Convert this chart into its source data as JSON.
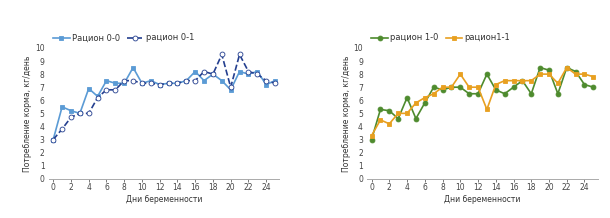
{
  "left": {
    "xlabel": "Дни беременности",
    "ylabel": "Потребление корма, кг/день",
    "series": {
      "r00": {
        "label": "Рацион 0-0",
        "color": "#5b9bd5",
        "linestyle": "-",
        "marker": "s",
        "markersize": 3.5,
        "linewidth": 1.2,
        "x": [
          0,
          1,
          2,
          3,
          4,
          5,
          6,
          7,
          8,
          9,
          10,
          11,
          12,
          13,
          14,
          15,
          16,
          17,
          18,
          19,
          20,
          21,
          22,
          23,
          24,
          25
        ],
        "y": [
          3.0,
          5.5,
          5.2,
          5.0,
          6.9,
          6.3,
          7.5,
          7.3,
          7.3,
          8.5,
          7.3,
          7.5,
          7.2,
          7.3,
          7.3,
          7.5,
          8.2,
          7.5,
          8.0,
          7.5,
          6.8,
          8.2,
          8.0,
          8.2,
          7.2,
          7.5
        ]
      },
      "r01": {
        "label": "рацион 0-1",
        "color": "#243f8f",
        "linestyle": "--",
        "marker": "o",
        "markerfacecolor": "white",
        "markersize": 3.5,
        "linewidth": 1.2,
        "x": [
          0,
          1,
          2,
          3,
          4,
          5,
          6,
          7,
          8,
          9,
          10,
          11,
          12,
          13,
          14,
          15,
          16,
          17,
          18,
          19,
          20,
          21,
          22,
          23,
          24,
          25
        ],
        "y": [
          3.0,
          3.8,
          4.7,
          5.0,
          5.0,
          6.2,
          6.8,
          6.8,
          7.5,
          7.5,
          7.3,
          7.3,
          7.2,
          7.3,
          7.3,
          7.5,
          7.5,
          8.2,
          8.0,
          9.5,
          7.0,
          9.5,
          8.2,
          8.0,
          7.5,
          7.3
        ]
      }
    },
    "xlim": [
      -0.5,
      25.5
    ],
    "ylim": [
      0,
      10
    ],
    "xticks": [
      0,
      2,
      4,
      6,
      8,
      10,
      12,
      14,
      16,
      18,
      20,
      22,
      24
    ],
    "yticks": [
      0,
      1,
      2,
      3,
      4,
      5,
      6,
      7,
      8,
      9,
      10
    ]
  },
  "right": {
    "xlabel": "Дни беременности",
    "ylabel": "Потребление корма, кг/день",
    "series": {
      "r10": {
        "label": "рацион 1-0",
        "color": "#4e8b2e",
        "linestyle": "-",
        "marker": "o",
        "markersize": 3.5,
        "linewidth": 1.2,
        "x": [
          0,
          1,
          2,
          3,
          4,
          5,
          6,
          7,
          8,
          9,
          10,
          11,
          12,
          13,
          14,
          15,
          16,
          17,
          18,
          19,
          20,
          21,
          22,
          23,
          24,
          25
        ],
        "y": [
          3.0,
          5.3,
          5.2,
          4.6,
          6.2,
          4.6,
          5.8,
          7.0,
          6.8,
          7.0,
          7.0,
          6.5,
          6.5,
          8.0,
          6.8,
          6.5,
          7.0,
          7.5,
          6.5,
          8.5,
          8.3,
          6.5,
          8.5,
          8.2,
          7.2,
          7.0
        ]
      },
      "r11": {
        "label": "рацион1-1",
        "color": "#e8a020",
        "linestyle": "-",
        "marker": "s",
        "markersize": 3.5,
        "linewidth": 1.2,
        "x": [
          0,
          1,
          2,
          3,
          4,
          5,
          6,
          7,
          8,
          9,
          10,
          11,
          12,
          13,
          14,
          15,
          16,
          17,
          18,
          19,
          20,
          21,
          22,
          23,
          24,
          25
        ],
        "y": [
          3.3,
          4.5,
          4.2,
          5.0,
          5.0,
          5.8,
          6.2,
          6.5,
          7.0,
          7.0,
          8.0,
          7.0,
          7.0,
          5.3,
          7.2,
          7.5,
          7.5,
          7.5,
          7.5,
          8.0,
          8.0,
          7.3,
          8.5,
          8.0,
          8.0,
          7.8
        ]
      }
    },
    "xlim": [
      -0.5,
      25.5
    ],
    "ylim": [
      0,
      10
    ],
    "xticks": [
      0,
      2,
      4,
      6,
      8,
      10,
      12,
      14,
      16,
      18,
      20,
      22,
      24
    ],
    "yticks": [
      0,
      1,
      2,
      3,
      4,
      5,
      6,
      7,
      8,
      9,
      10
    ]
  },
  "bg_color": "#ffffff",
  "spine_color": "#aaaaaa",
  "tick_fontsize": 5.5,
  "label_fontsize": 5.5,
  "legend_fontsize": 6.0
}
